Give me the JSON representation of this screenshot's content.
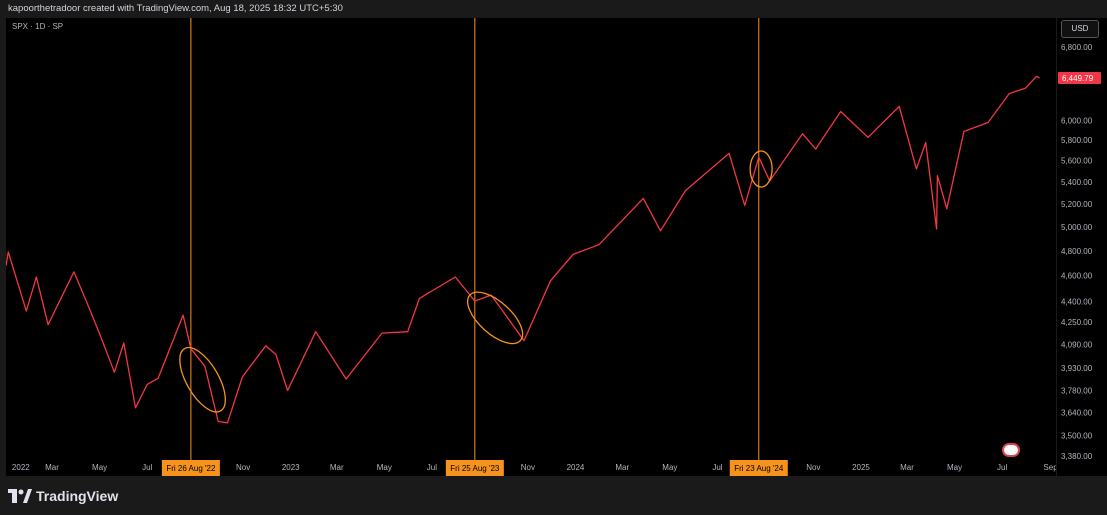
{
  "header": {
    "text": "kapoorthetradoor created with TradingView.com, Aug 18, 2025 18:32 UTC+5:30"
  },
  "symbol": "SPX · 1D · SP",
  "currency": "USD",
  "brand": "TradingView",
  "colors": {
    "line": "#f23645",
    "marker": "#f7931a",
    "background": "#000000",
    "last_price_badge": "#f23645"
  },
  "chart_data": {
    "type": "line",
    "x_axis_labels": [
      "2022",
      "Mar",
      "May",
      "Jul",
      "Nov",
      "2023",
      "Mar",
      "May",
      "Jul",
      "Nov",
      "2024",
      "Mar",
      "May",
      "Jul",
      "Nov",
      "2025",
      "Mar",
      "May",
      "Jul",
      "Sep"
    ],
    "y_axis_labels": [
      "6,800.00",
      "6,000.00",
      "5,800.00",
      "5,600.00",
      "5,400.00",
      "5,200.00",
      "5,000.00",
      "4,800.00",
      "4,600.00",
      "4,400.00",
      "4,250.00",
      "4,090.00",
      "3,930.00",
      "3,780.00",
      "3,640.00",
      "3,500.00",
      "3,380.00"
    ],
    "y_scale": "log",
    "last_price": "6,449.79",
    "highlighted_dates": [
      "Fri 26 Aug '22",
      "Fri 25 Aug '23",
      "Fri 23 Aug '24"
    ],
    "series": [
      {
        "values": [
          [
            "2022-01-01",
            4680
          ],
          [
            "2022-01-04",
            4790
          ],
          [
            "2022-01-27",
            4330
          ],
          [
            "2022-02-09",
            4590
          ],
          [
            "2022-02-24",
            4230
          ],
          [
            "2022-03-29",
            4630
          ],
          [
            "2022-04-15",
            4390
          ],
          [
            "2022-05-02",
            4150
          ],
          [
            "2022-05-20",
            3900
          ],
          [
            "2022-06-01",
            4100
          ],
          [
            "2022-06-16",
            3670
          ],
          [
            "2022-07-01",
            3820
          ],
          [
            "2022-07-15",
            3860
          ],
          [
            "2022-08-16",
            4300
          ],
          [
            "2022-08-26",
            4060
          ],
          [
            "2022-09-13",
            3940
          ],
          [
            "2022-09-30",
            3585
          ],
          [
            "2022-10-12",
            3577
          ],
          [
            "2022-10-31",
            3870
          ],
          [
            "2022-11-30",
            4080
          ],
          [
            "2022-12-13",
            4020
          ],
          [
            "2022-12-28",
            3780
          ],
          [
            "2023-01-10",
            3920
          ],
          [
            "2023-02-02",
            4180
          ],
          [
            "2023-03-13",
            3855
          ],
          [
            "2023-04-28",
            4170
          ],
          [
            "2023-05-31",
            4180
          ],
          [
            "2023-06-15",
            4425
          ],
          [
            "2023-07-31",
            4590
          ],
          [
            "2023-08-25",
            4405
          ],
          [
            "2023-09-15",
            4450
          ],
          [
            "2023-10-27",
            4117
          ],
          [
            "2023-11-30",
            4560
          ],
          [
            "2023-12-29",
            4770
          ],
          [
            "2024-01-31",
            4850
          ],
          [
            "2024-03-28",
            5250
          ],
          [
            "2024-04-19",
            4967
          ],
          [
            "2024-05-21",
            5320
          ],
          [
            "2024-07-16",
            5670
          ],
          [
            "2024-08-05",
            5186
          ],
          [
            "2024-08-23",
            5634
          ],
          [
            "2024-09-06",
            5408
          ],
          [
            "2024-10-18",
            5864
          ],
          [
            "2024-11-04",
            5712
          ],
          [
            "2024-12-06",
            6090
          ],
          [
            "2025-01-10",
            5827
          ],
          [
            "2025-02-19",
            6144
          ],
          [
            "2025-03-13",
            5521
          ],
          [
            "2025-03-25",
            5776
          ],
          [
            "2025-04-08",
            4982
          ],
          [
            "2025-04-09",
            5457
          ],
          [
            "2025-04-21",
            5158
          ],
          [
            "2025-05-13",
            5886
          ],
          [
            "2025-06-13",
            5977
          ],
          [
            "2025-07-10",
            6280
          ],
          [
            "2025-07-31",
            6339
          ],
          [
            "2025-08-14",
            6468
          ],
          [
            "2025-08-18",
            6449.79
          ]
        ]
      }
    ],
    "annotations": [
      "ellipse around late-Aug 2022 decline",
      "ellipse around late-Aug 2023 decline",
      "ellipse around Aug 2024 dip"
    ]
  }
}
